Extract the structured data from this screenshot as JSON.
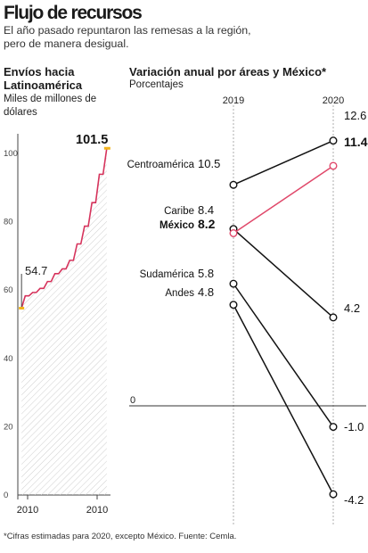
{
  "header": {
    "title": "Flujo de recursos",
    "subtitle": "El año pasado repuntaron las remesas a la región, pero de manera desigual."
  },
  "footnote": "*Cifras estimadas para 2020, excepto México. Fuente: Cemla.",
  "chart_data": [
    {
      "type": "line",
      "title": "Envíos hacia Latinoamérica",
      "ylabel": "Miles de millones de dólares",
      "ylim": [
        0,
        100
      ],
      "yticks": [
        "0",
        "20",
        "40",
        "60",
        "80",
        "100"
      ],
      "xtick_labels": [
        "2010",
        "2010"
      ],
      "grid": false,
      "series": [
        {
          "values": [
            54.7,
            58.3,
            58.3,
            59.3,
            59.3,
            60.5,
            60.5,
            62.5,
            62.5,
            64.8,
            64.8,
            66.2,
            66.2,
            68.7,
            68.7,
            73.5,
            73.5,
            78.7,
            78.7,
            85.6,
            85.6,
            93.9,
            93.9,
            101.5
          ]
        }
      ],
      "annotations": [
        {
          "label": "54.7",
          "value": 54.7,
          "position": "start"
        },
        {
          "label": "101.5",
          "value": 101.5,
          "position": "end"
        }
      ]
    },
    {
      "type": "line",
      "title": "Variación anual por áreas y México*",
      "ylabel": "Porcentajes",
      "categories": [
        "2019",
        "2020"
      ],
      "zero_label": "0",
      "highlight_color": "#e0486a",
      "series": [
        {
          "name": "Centroamérica",
          "values": [
            10.5,
            12.6
          ],
          "labels": [
            "10.5",
            "12.6"
          ]
        },
        {
          "name": "Caribe",
          "values": [
            8.4,
            4.2
          ],
          "labels": [
            "8.4",
            "4.2"
          ]
        },
        {
          "name": "México",
          "values": [
            8.2,
            11.4
          ],
          "labels": [
            "8.2",
            "11.4"
          ],
          "highlight": true
        },
        {
          "name": "Sudamérica",
          "values": [
            5.8,
            -1.0
          ],
          "labels": [
            "5.8",
            "-1.0"
          ]
        },
        {
          "name": "Andes",
          "values": [
            4.8,
            -4.2
          ],
          "labels": [
            "4.8",
            "-4.2"
          ]
        }
      ]
    }
  ]
}
